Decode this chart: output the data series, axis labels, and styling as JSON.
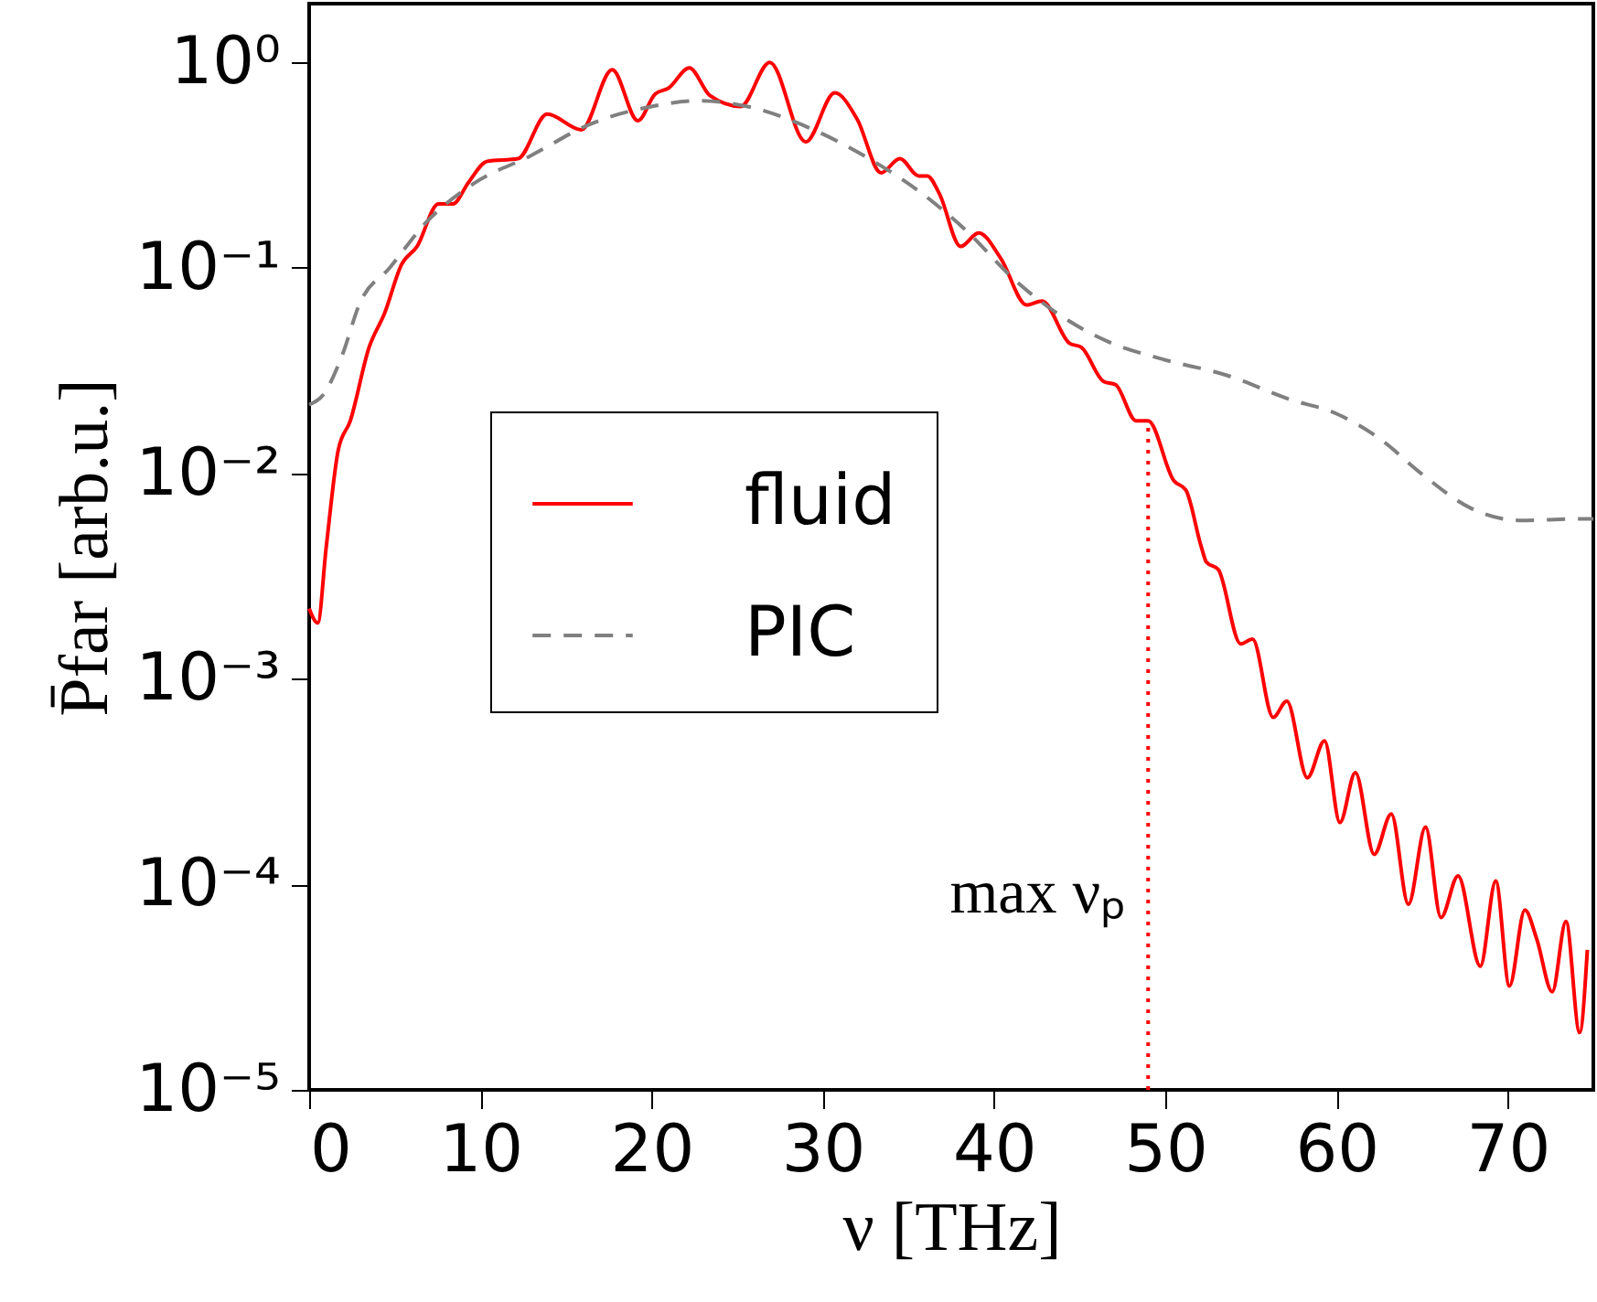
{
  "chart_data": {
    "type": "line",
    "xlabel": "ν [THz]",
    "ylabel": "P̄far [arb.u.]",
    "log": "y",
    "xlim": [
      0,
      75
    ],
    "xticks": [
      0,
      10,
      20,
      30,
      40,
      50,
      60,
      70
    ],
    "ylim": [
      1e-05,
      1.93
    ],
    "yticks": [
      {
        "value": 1e-05,
        "label": "10⁻⁵"
      },
      {
        "value": 0.0001,
        "label": "10⁻⁴"
      },
      {
        "value": 0.001,
        "label": "10⁻³"
      },
      {
        "value": 0.01,
        "label": "10⁻²"
      },
      {
        "value": 0.1,
        "label": "10⁻¹"
      },
      {
        "value": 1,
        "label": "10⁰"
      }
    ],
    "grid": false,
    "legend": "left",
    "marker": "none",
    "series": [
      {
        "name": "fluid",
        "color": "#ff0000",
        "line_style": "solid",
        "x": [
          0,
          0.5,
          1.0,
          1.7,
          2.4,
          3.5,
          4.4,
          5.4,
          6.3,
          7.55,
          8.4,
          9.3,
          10.4,
          12.2,
          13.9,
          15.9,
          17.7,
          19.2,
          20.2,
          21.0,
          22.2,
          23.4,
          25.2,
          26.9,
          29.0,
          30.7,
          32.0,
          33.4,
          34.5,
          35.6,
          36.1,
          36.8,
          38.05,
          39.1,
          40.4,
          41.9,
          42.8,
          44.4,
          45.1,
          46.4,
          47.1,
          48.3,
          49.0,
          50.5,
          51.2,
          52.1,
          52.4,
          53.1,
          54.4,
          55.1,
          56.3,
          57.1,
          58.3,
          59.3,
          60.2,
          61.1,
          62.2,
          63.2,
          64.2,
          65.2,
          66.1,
          67.1,
          68.4,
          69.3,
          70.1,
          71.0,
          71.7,
          72.6,
          73.4,
          74.2,
          74.65
        ],
        "values": [
          0.0022,
          0.00187,
          0.0044,
          0.013,
          0.018,
          0.041,
          0.06,
          0.104,
          0.127,
          0.205,
          0.205,
          0.26,
          0.33,
          0.34,
          0.56,
          0.47,
          0.92,
          0.52,
          0.7,
          0.75,
          0.94,
          0.69,
          0.61,
          1.0,
          0.41,
          0.71,
          0.53,
          0.29,
          0.34,
          0.28,
          0.28,
          0.23,
          0.127,
          0.148,
          0.111,
          0.066,
          0.069,
          0.043,
          0.041,
          0.028,
          0.027,
          0.018,
          0.018,
          0.0092,
          0.0083,
          0.0044,
          0.0037,
          0.0034,
          0.00148,
          0.00156,
          0.00065,
          0.00078,
          0.00033,
          0.0005,
          0.0002,
          0.00035,
          0.00014,
          0.00022,
          8e-05,
          0.00019,
          6.9e-05,
          0.00011,
          4e-05,
          0.000104,
          3.2e-05,
          7.5e-05,
          5.4e-05,
          3e-05,
          6.6e-05,
          1.9e-05,
          4.8e-05
        ]
      },
      {
        "name": "PIC",
        "color": "#808080",
        "line_style": "dashed",
        "x": [
          0,
          0.8,
          1.9,
          2.95,
          4.7,
          6.85,
          9.7,
          12.9,
          16.4,
          20.0,
          22.8,
          25.6,
          29.2,
          32.7,
          36.1,
          38.4,
          41.2,
          43.7,
          46.6,
          49.8,
          53.6,
          57.2,
          60.0,
          62.5,
          65.0,
          67.8,
          70.7,
          74.2,
          75
        ],
        "values": [
          0.0216,
          0.024,
          0.037,
          0.067,
          0.1,
          0.167,
          0.26,
          0.35,
          0.5,
          0.61,
          0.65,
          0.61,
          0.48,
          0.34,
          0.22,
          0.151,
          0.0875,
          0.06,
          0.044,
          0.036,
          0.03,
          0.023,
          0.0195,
          0.0148,
          0.0099,
          0.0068,
          0.0059,
          0.006,
          0.006
        ]
      }
    ],
    "ref_lines": [
      {
        "axis": "x",
        "value": 49.0,
        "label": "max νₚ",
        "color": "#ff0000",
        "line_style": "dotted"
      }
    ]
  }
}
